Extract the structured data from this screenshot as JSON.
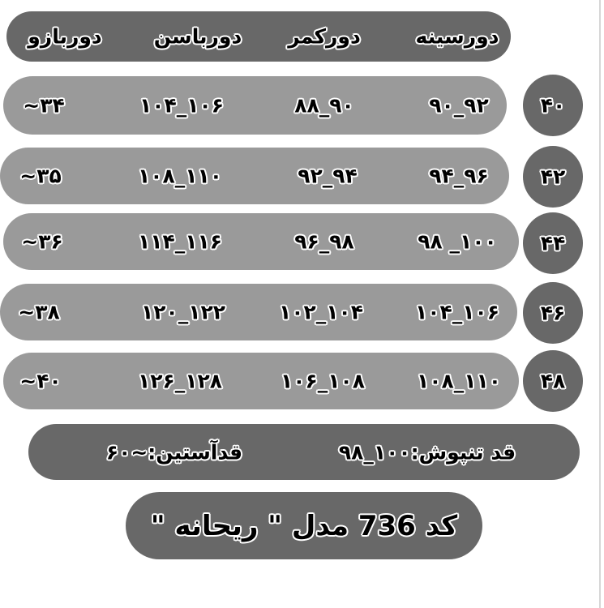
{
  "headers": [
    "دورسینه",
    "دورکمر",
    "دورباسن",
    "دوربازو"
  ],
  "rows": [
    {
      "size": "۴۰",
      "values": [
        "۹۰_۹۲",
        "۸۸_۹۰",
        "۱۰۴_۱۰۶",
        "~۳۴"
      ]
    },
    {
      "size": "۴۲",
      "values": [
        "۹۴_۹۶",
        "۹۲_۹۴",
        "۱۰۸_۱۱۰",
        "~۳۵"
      ]
    },
    {
      "size": "۴۴",
      "values": [
        "۹۸ _۱۰۰",
        "۹۶_۹۸",
        "۱۱۴_۱۱۶",
        "~۳۶"
      ]
    },
    {
      "size": "۴۶",
      "values": [
        "۱۰۴_۱۰۶",
        "۱۰۲_۱۰۴",
        "۱۲۰_۱۲۲",
        "~۳۸"
      ]
    },
    {
      "size": "۴۸",
      "values": [
        "۱۰۸_۱۱۰",
        "۱۰۶_۱۰۸",
        "۱۲۶_۱۲۸",
        "~۴۰"
      ]
    }
  ],
  "info": {
    "body_length": "قد تنپوش:۱۰۰_۹۸",
    "sleeve_length": "قدآستین:~۶۰"
  },
  "model": "کد 736  مدل \" ریحانه \"",
  "colors": {
    "dark": "#686868",
    "light": "#9a9a9a"
  }
}
